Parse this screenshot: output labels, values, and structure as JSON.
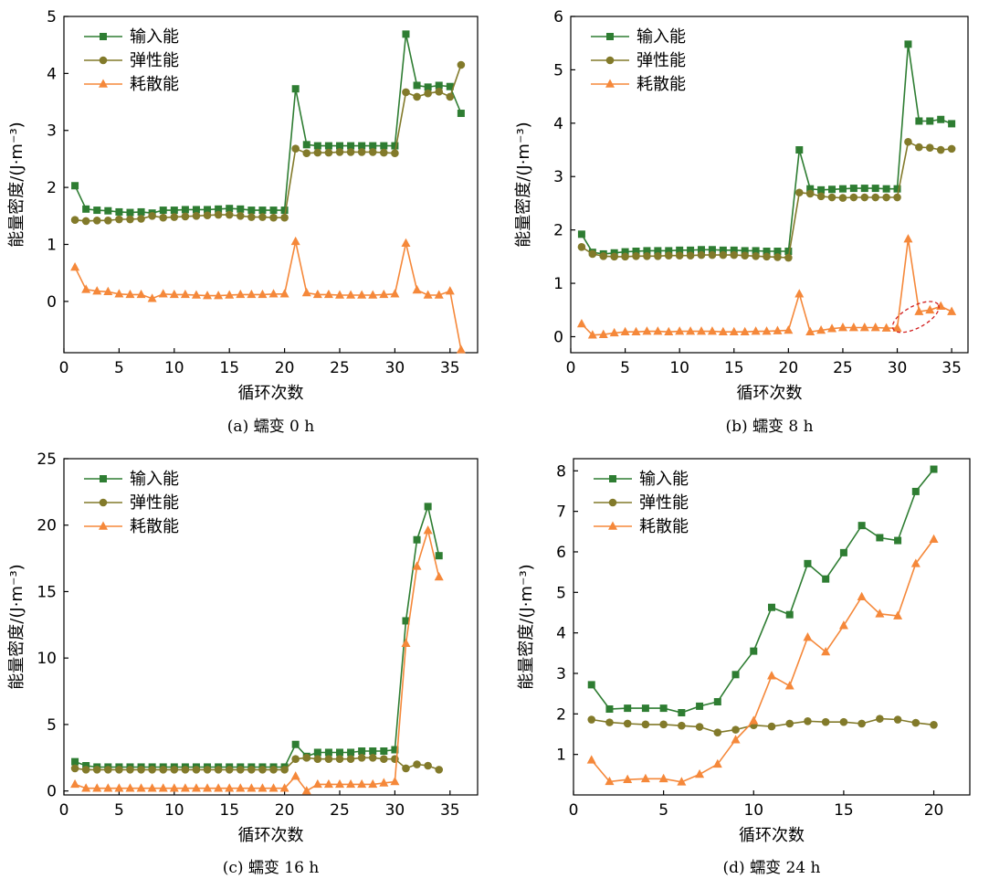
{
  "colors": {
    "input": "#2e7d32",
    "elastic": "#827a2a",
    "dissipated": "#f5883a",
    "annotation": "#d22020"
  },
  "chart_data": [
    {
      "type": "line",
      "caption": "(a) 蠕变 0 h",
      "xlabel": "循环次数",
      "ylabel": "能量密度/(J·m⁻³)",
      "xlim": [
        0,
        37.5
      ],
      "ylim": [
        -0.9,
        5
      ],
      "xticks": [
        0,
        5,
        10,
        15,
        20,
        25,
        30,
        35
      ],
      "yticks": [
        0,
        1,
        2,
        3,
        4,
        5
      ],
      "legend": "top-left",
      "series": [
        {
          "name": "输入能",
          "marker": "square",
          "x": [
            1,
            2,
            3,
            4,
            5,
            6,
            7,
            8,
            9,
            10,
            11,
            12,
            13,
            14,
            15,
            16,
            17,
            18,
            19,
            20,
            21,
            22,
            23,
            24,
            25,
            26,
            27,
            28,
            29,
            30,
            31,
            32,
            33,
            34,
            35,
            36
          ],
          "y": [
            2.03,
            1.62,
            1.6,
            1.59,
            1.57,
            1.56,
            1.57,
            1.55,
            1.6,
            1.6,
            1.61,
            1.61,
            1.61,
            1.62,
            1.63,
            1.62,
            1.6,
            1.6,
            1.6,
            1.6,
            3.73,
            2.75,
            2.73,
            2.73,
            2.73,
            2.73,
            2.73,
            2.73,
            2.73,
            2.73,
            4.69,
            3.79,
            3.76,
            3.79,
            3.77,
            3.3
          ]
        },
        {
          "name": "弹性能",
          "marker": "circle",
          "x": [
            1,
            2,
            3,
            4,
            5,
            6,
            7,
            8,
            9,
            10,
            11,
            12,
            13,
            14,
            15,
            16,
            17,
            18,
            19,
            20,
            21,
            22,
            23,
            24,
            25,
            26,
            27,
            28,
            29,
            30,
            31,
            32,
            33,
            34,
            35,
            36
          ],
          "y": [
            1.43,
            1.41,
            1.42,
            1.42,
            1.44,
            1.44,
            1.45,
            1.5,
            1.47,
            1.48,
            1.49,
            1.5,
            1.51,
            1.52,
            1.52,
            1.5,
            1.48,
            1.48,
            1.47,
            1.47,
            2.68,
            2.6,
            2.61,
            2.61,
            2.62,
            2.62,
            2.62,
            2.62,
            2.61,
            2.6,
            3.67,
            3.59,
            3.65,
            3.68,
            3.59,
            4.15
          ]
        },
        {
          "name": "耗散能",
          "marker": "triangle",
          "x": [
            1,
            2,
            3,
            4,
            5,
            6,
            7,
            8,
            9,
            10,
            11,
            12,
            13,
            14,
            15,
            16,
            17,
            18,
            19,
            20,
            21,
            22,
            23,
            24,
            25,
            26,
            27,
            28,
            29,
            30,
            31,
            32,
            33,
            34,
            35,
            36
          ],
          "y": [
            0.6,
            0.21,
            0.18,
            0.17,
            0.13,
            0.12,
            0.12,
            0.05,
            0.13,
            0.12,
            0.12,
            0.11,
            0.1,
            0.1,
            0.11,
            0.12,
            0.12,
            0.12,
            0.13,
            0.13,
            1.05,
            0.15,
            0.12,
            0.12,
            0.11,
            0.11,
            0.11,
            0.11,
            0.12,
            0.13,
            1.02,
            0.2,
            0.11,
            0.11,
            0.18,
            -0.85
          ]
        }
      ]
    },
    {
      "type": "line",
      "caption": "(b) 蠕变 8 h",
      "xlabel": "循环次数",
      "ylabel": "能量密度/(J·m⁻³)",
      "xlim": [
        0,
        36.5
      ],
      "ylim": [
        -0.3,
        6
      ],
      "xticks": [
        0,
        5,
        10,
        15,
        20,
        25,
        30,
        35
      ],
      "yticks": [
        0,
        1,
        2,
        3,
        4,
        5,
        6
      ],
      "legend": "top-left",
      "series": [
        {
          "name": "输入能",
          "marker": "square",
          "x": [
            1,
            2,
            3,
            4,
            5,
            6,
            7,
            8,
            9,
            10,
            11,
            12,
            13,
            14,
            15,
            16,
            17,
            18,
            19,
            20,
            21,
            22,
            23,
            24,
            25,
            26,
            27,
            28,
            29,
            30,
            31,
            32,
            33,
            34,
            35
          ],
          "y": [
            1.92,
            1.58,
            1.55,
            1.57,
            1.59,
            1.6,
            1.61,
            1.61,
            1.61,
            1.62,
            1.62,
            1.63,
            1.63,
            1.62,
            1.62,
            1.61,
            1.61,
            1.6,
            1.6,
            1.6,
            3.5,
            2.77,
            2.75,
            2.76,
            2.77,
            2.78,
            2.78,
            2.78,
            2.77,
            2.77,
            5.48,
            4.04,
            4.04,
            4.07,
            3.99
          ]
        },
        {
          "name": "弹性能",
          "marker": "circle",
          "x": [
            1,
            2,
            3,
            4,
            5,
            6,
            7,
            8,
            9,
            10,
            11,
            12,
            13,
            14,
            15,
            16,
            17,
            18,
            19,
            20,
            21,
            22,
            23,
            24,
            25,
            26,
            27,
            28,
            29,
            30,
            31,
            32,
            33,
            34,
            35
          ],
          "y": [
            1.68,
            1.55,
            1.51,
            1.5,
            1.5,
            1.51,
            1.51,
            1.51,
            1.52,
            1.52,
            1.52,
            1.53,
            1.53,
            1.53,
            1.53,
            1.52,
            1.51,
            1.5,
            1.49,
            1.48,
            2.7,
            2.68,
            2.63,
            2.61,
            2.6,
            2.61,
            2.61,
            2.61,
            2.61,
            2.61,
            3.65,
            3.55,
            3.54,
            3.5,
            3.52
          ]
        },
        {
          "name": "耗散能",
          "marker": "triangle",
          "x": [
            1,
            2,
            3,
            4,
            5,
            6,
            7,
            8,
            9,
            10,
            11,
            12,
            13,
            14,
            15,
            16,
            17,
            18,
            19,
            20,
            21,
            22,
            23,
            24,
            25,
            26,
            27,
            28,
            29,
            30,
            31,
            32,
            33,
            34,
            35
          ],
          "y": [
            0.24,
            0.03,
            0.04,
            0.07,
            0.09,
            0.09,
            0.1,
            0.1,
            0.09,
            0.1,
            0.1,
            0.1,
            0.1,
            0.09,
            0.09,
            0.09,
            0.1,
            0.1,
            0.11,
            0.12,
            0.8,
            0.09,
            0.12,
            0.15,
            0.17,
            0.17,
            0.17,
            0.17,
            0.16,
            0.16,
            1.83,
            0.47,
            0.5,
            0.57,
            0.47
          ]
        }
      ],
      "annotation": {
        "shape": "dashed-ellipse",
        "x": 31.7,
        "y": 0.37
      }
    },
    {
      "type": "line",
      "caption": "(c) 蠕变 16 h",
      "xlabel": "循环次数",
      "ylabel": "能量密度/(J·m⁻³)",
      "xlim": [
        0,
        37.5
      ],
      "ylim": [
        -0.3,
        25
      ],
      "xticks": [
        0,
        5,
        10,
        15,
        20,
        25,
        30,
        35
      ],
      "yticks": [
        0,
        5,
        10,
        15,
        20,
        25
      ],
      "legend": "top-left",
      "series": [
        {
          "name": "输入能",
          "marker": "square",
          "x": [
            1,
            2,
            3,
            4,
            5,
            6,
            7,
            8,
            9,
            10,
            11,
            12,
            13,
            14,
            15,
            16,
            17,
            18,
            19,
            20,
            21,
            22,
            23,
            24,
            25,
            26,
            27,
            28,
            29,
            30,
            31,
            32,
            33,
            34
          ],
          "y": [
            2.2,
            1.9,
            1.8,
            1.8,
            1.8,
            1.8,
            1.8,
            1.8,
            1.8,
            1.8,
            1.8,
            1.8,
            1.8,
            1.8,
            1.8,
            1.8,
            1.8,
            1.8,
            1.8,
            1.8,
            3.5,
            2.6,
            2.9,
            2.9,
            2.9,
            2.9,
            3.0,
            3.0,
            3.0,
            3.1,
            12.8,
            18.9,
            21.4,
            17.7
          ]
        },
        {
          "name": "弹性能",
          "marker": "circle",
          "x": [
            1,
            2,
            3,
            4,
            5,
            6,
            7,
            8,
            9,
            10,
            11,
            12,
            13,
            14,
            15,
            16,
            17,
            18,
            19,
            20,
            21,
            22,
            23,
            24,
            25,
            26,
            27,
            28,
            29,
            30,
            31,
            32,
            33,
            34
          ],
          "y": [
            1.7,
            1.6,
            1.6,
            1.6,
            1.6,
            1.6,
            1.6,
            1.6,
            1.6,
            1.6,
            1.6,
            1.6,
            1.6,
            1.6,
            1.6,
            1.6,
            1.6,
            1.6,
            1.6,
            1.6,
            2.4,
            2.5,
            2.4,
            2.4,
            2.4,
            2.4,
            2.5,
            2.5,
            2.4,
            2.4,
            1.7,
            2.0,
            1.9,
            1.6
          ]
        },
        {
          "name": "耗散能",
          "marker": "triangle",
          "x": [
            1,
            2,
            3,
            4,
            5,
            6,
            7,
            8,
            9,
            10,
            11,
            12,
            13,
            14,
            15,
            16,
            17,
            18,
            19,
            20,
            21,
            22,
            23,
            24,
            25,
            26,
            27,
            28,
            29,
            30,
            31,
            32,
            33,
            34
          ],
          "y": [
            0.5,
            0.2,
            0.2,
            0.2,
            0.2,
            0.2,
            0.2,
            0.2,
            0.2,
            0.2,
            0.2,
            0.2,
            0.2,
            0.2,
            0.2,
            0.2,
            0.2,
            0.2,
            0.2,
            0.2,
            1.1,
            0.0,
            0.5,
            0.5,
            0.5,
            0.5,
            0.5,
            0.5,
            0.6,
            0.7,
            11.1,
            16.9,
            19.6,
            16.1
          ]
        }
      ]
    },
    {
      "type": "line",
      "caption": "(d) 蠕变 24 h",
      "xlabel": "循环次数",
      "ylabel": "能量密度/(J·m⁻³)",
      "xlim": [
        0,
        22
      ],
      "ylim": [
        0,
        8.3
      ],
      "xticks": [
        0,
        5,
        10,
        15,
        20
      ],
      "yticks": [
        1,
        2,
        3,
        4,
        5,
        6,
        7,
        8
      ],
      "legend": "top-left",
      "series": [
        {
          "name": "输入能",
          "marker": "square",
          "x": [
            1,
            2,
            3,
            4,
            5,
            6,
            7,
            8,
            9,
            10,
            11,
            12,
            13,
            14,
            15,
            16,
            17,
            18,
            19,
            20
          ],
          "y": [
            2.72,
            2.12,
            2.14,
            2.14,
            2.14,
            2.03,
            2.19,
            2.3,
            2.97,
            3.55,
            4.63,
            4.45,
            5.71,
            5.33,
            5.98,
            6.65,
            6.35,
            6.28,
            7.49,
            8.04
          ]
        },
        {
          "name": "弹性能",
          "marker": "circle",
          "x": [
            1,
            2,
            3,
            4,
            5,
            6,
            7,
            8,
            9,
            10,
            11,
            12,
            13,
            14,
            15,
            16,
            17,
            18,
            19,
            20
          ],
          "y": [
            1.86,
            1.79,
            1.76,
            1.74,
            1.74,
            1.71,
            1.68,
            1.54,
            1.61,
            1.72,
            1.69,
            1.76,
            1.82,
            1.8,
            1.8,
            1.76,
            1.88,
            1.86,
            1.78,
            1.73
          ]
        },
        {
          "name": "耗散能",
          "marker": "triangle",
          "x": [
            1,
            2,
            3,
            4,
            5,
            6,
            7,
            8,
            9,
            10,
            11,
            12,
            13,
            14,
            15,
            16,
            17,
            18,
            19,
            20
          ],
          "y": [
            0.86,
            0.33,
            0.38,
            0.4,
            0.4,
            0.32,
            0.51,
            0.76,
            1.36,
            1.83,
            2.94,
            2.69,
            3.89,
            3.53,
            4.18,
            4.89,
            4.47,
            4.42,
            5.71,
            6.31
          ]
        }
      ]
    }
  ]
}
